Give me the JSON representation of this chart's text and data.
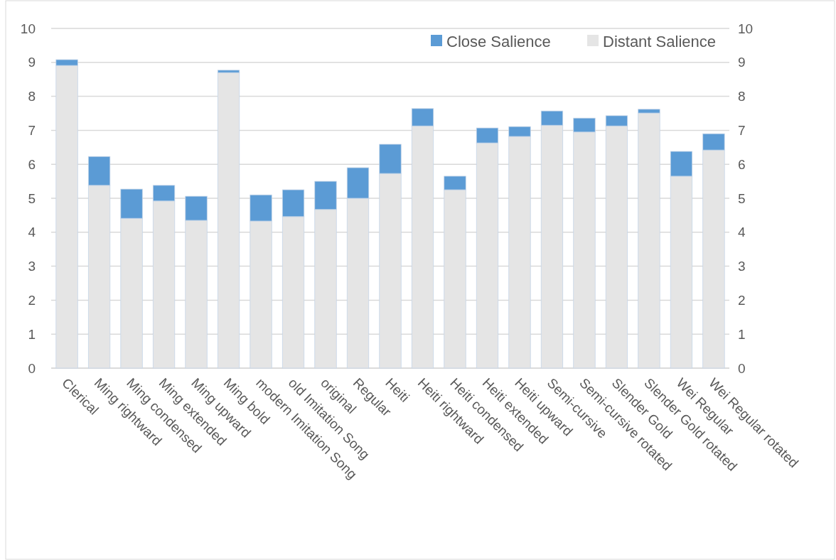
{
  "chart_data": {
    "type": "bar",
    "stacked": true,
    "categories": [
      "Clerical",
      "Ming rightward",
      "Ming condensed",
      "Ming extended",
      "Ming upward",
      "Ming bold",
      "modern Imitation Song",
      "old Imitation Song",
      "original",
      "Regular",
      "Heiti",
      "Heiti rightward",
      "Heiti condensed",
      "Heiti extended",
      "Heiti upward",
      "Semi-cursive",
      "Semi-cursive rotated",
      "Slender Gold",
      "Slender Gold rotated",
      "Wei Regular",
      "Wei Regular rotated"
    ],
    "series": [
      {
        "name": "Distant Salience",
        "color": "#e5e5e5",
        "values": [
          8.91,
          5.38,
          4.41,
          4.92,
          4.35,
          8.7,
          4.33,
          4.46,
          4.67,
          5.0,
          5.73,
          7.13,
          5.25,
          6.63,
          6.82,
          7.15,
          6.95,
          7.13,
          7.51,
          5.65,
          6.42
        ]
      },
      {
        "name": "Close Salience",
        "color": "#5b9bd5",
        "values": [
          0.17,
          0.85,
          0.86,
          0.46,
          0.71,
          0.07,
          0.77,
          0.79,
          0.83,
          0.9,
          0.86,
          0.51,
          0.4,
          0.44,
          0.29,
          0.42,
          0.41,
          0.3,
          0.11,
          0.73,
          0.48
        ]
      }
    ],
    "ylim": [
      0,
      10
    ],
    "yticks": [
      0,
      1,
      2,
      3,
      4,
      5,
      6,
      7,
      8,
      9,
      10
    ],
    "y2lim": [
      0,
      10
    ],
    "y2ticks": [
      0,
      1,
      2,
      3,
      4,
      5,
      6,
      7,
      8,
      9,
      10
    ],
    "grid": "y",
    "legend": "top right"
  }
}
